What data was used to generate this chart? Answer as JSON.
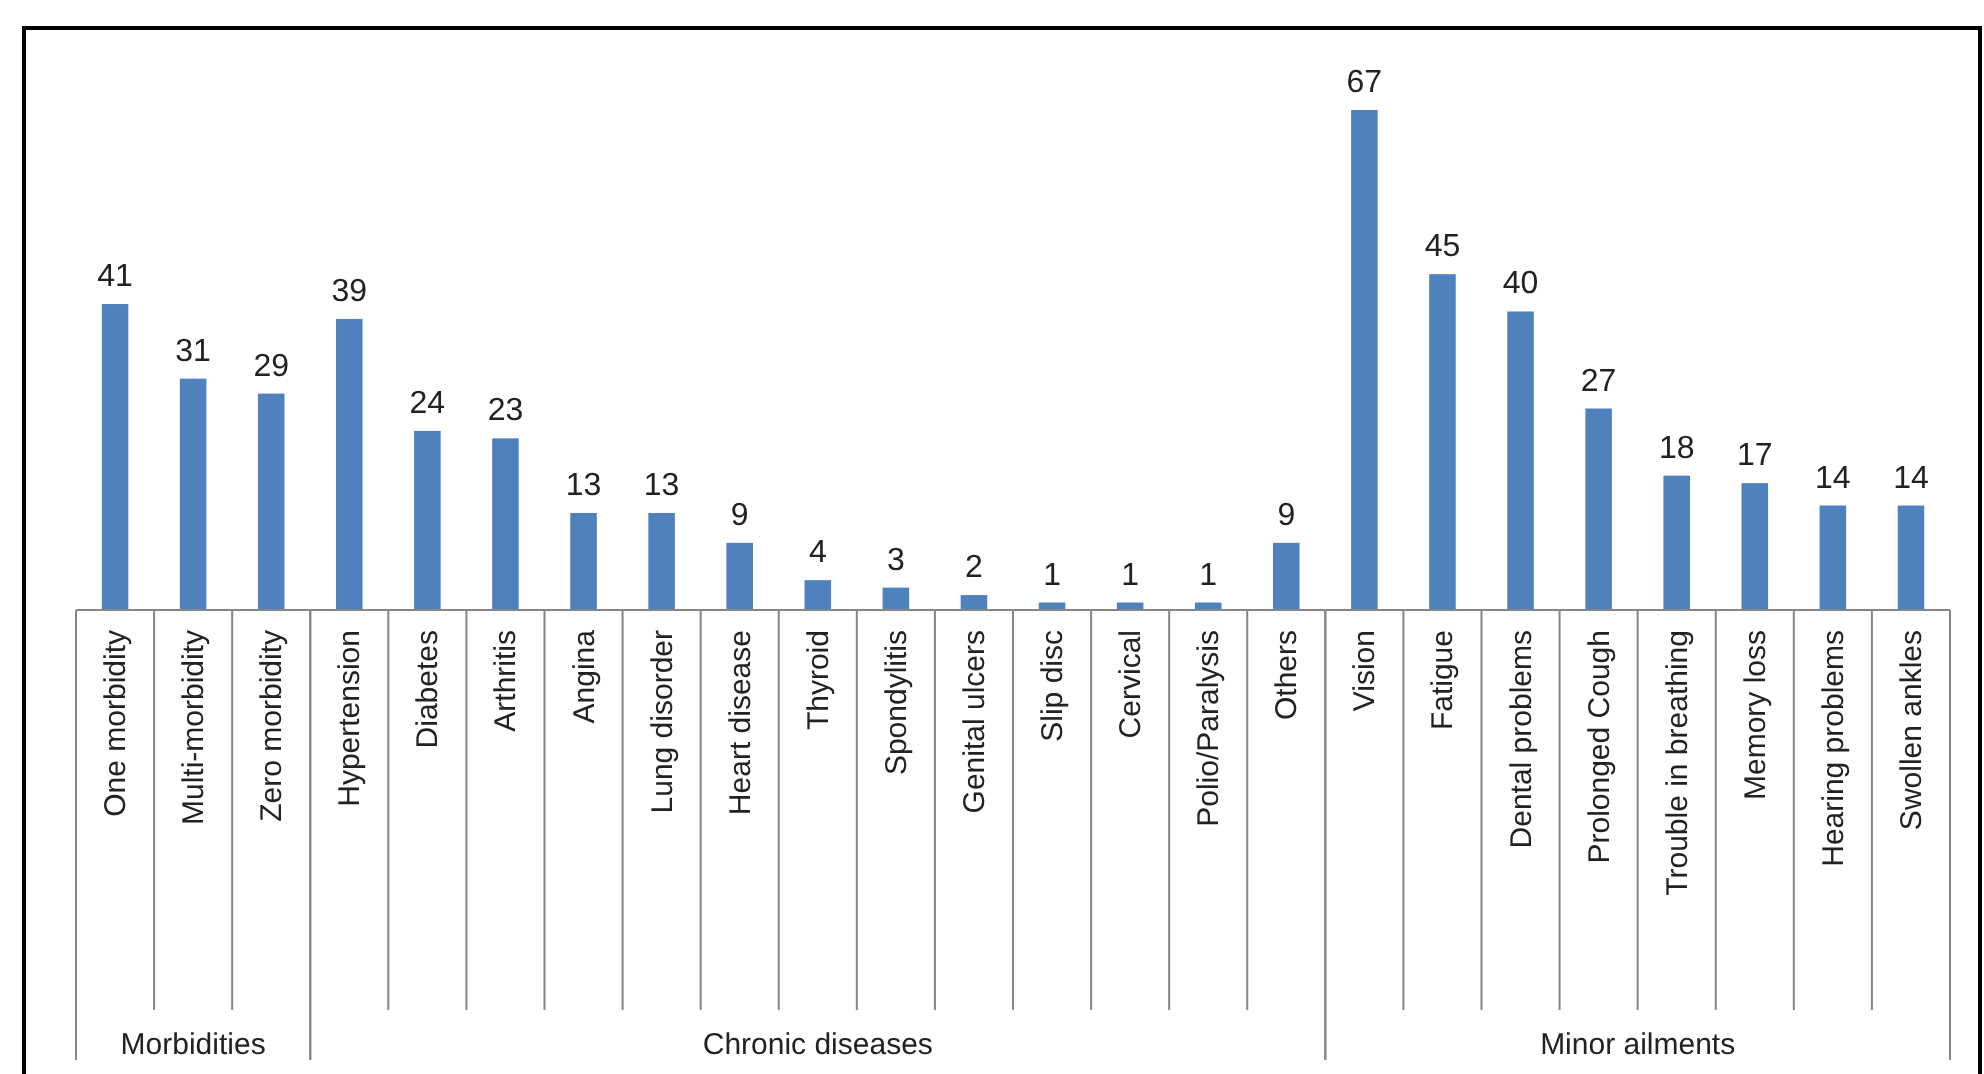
{
  "chart_data": [
    {
      "type": "bar",
      "xlabel": "Morbidities",
      "categories": [
        "One morbidity",
        "Multi-morbidity",
        "Zero morbidity"
      ],
      "values": [
        41,
        31,
        29
      ],
      "color": "#4f81bd",
      "data_labels": true
    },
    {
      "type": "bar",
      "xlabel": "Chronic diseases",
      "categories": [
        "Hypertension",
        "Diabetes",
        "Arthritis",
        "Angina",
        "Lung disorder",
        "Heart disease",
        "Thyroid",
        "Spondylitis",
        "Genital ulcers",
        "Slip disc",
        "Cervical",
        "Polio/Paralysis",
        "Others"
      ],
      "values": [
        39,
        24,
        23,
        13,
        13,
        9,
        4,
        3,
        2,
        1,
        1,
        1,
        9
      ],
      "color": "#4f81bd",
      "data_labels": true
    },
    {
      "type": "bar",
      "xlabel": "Minor ailments",
      "categories": [
        "Vision",
        "Fatigue",
        "Dental problems",
        "Prolonged Cough",
        "Trouble in breathing",
        "Memory loss",
        "Hearing problems",
        "Swollen ankles"
      ],
      "values": [
        67,
        45,
        40,
        27,
        18,
        17,
        14,
        14
      ],
      "color": "#4f81bd",
      "data_labels": true
    }
  ]
}
